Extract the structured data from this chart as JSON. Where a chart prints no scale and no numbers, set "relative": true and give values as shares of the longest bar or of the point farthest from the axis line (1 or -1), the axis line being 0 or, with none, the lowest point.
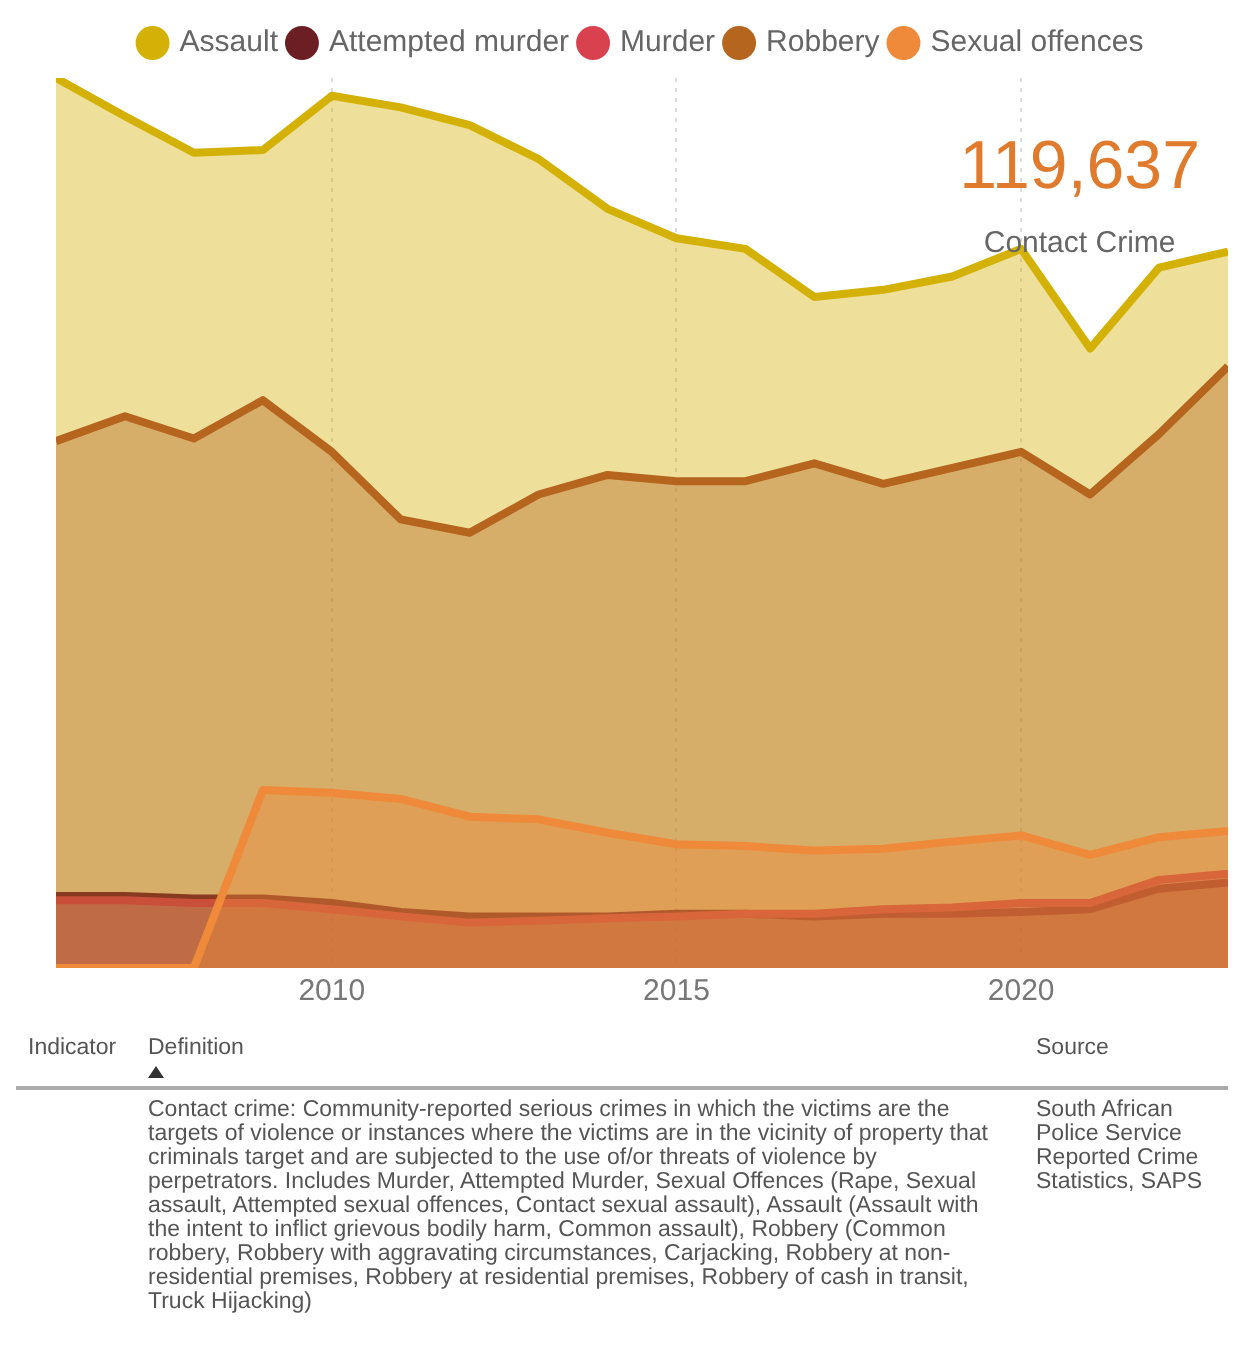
{
  "chart_data": {
    "type": "area",
    "relative": true,
    "x": [
      2006,
      2007,
      2008,
      2009,
      2010,
      2011,
      2012,
      2013,
      2014,
      2015,
      2016,
      2017,
      2018,
      2019,
      2020,
      2021,
      2022,
      2023
    ],
    "xlim": [
      2006,
      2023
    ],
    "xticks": [
      2010,
      2015,
      2020
    ],
    "grid": "x",
    "legend": "top",
    "marker": "none",
    "series": [
      {
        "name": "Assault",
        "color": "#d4b106",
        "values": [
          1.0,
          0.957,
          0.916,
          0.919,
          0.98,
          0.967,
          0.947,
          0.909,
          0.853,
          0.82,
          0.808,
          0.754,
          0.762,
          0.777,
          0.808,
          0.696,
          0.787,
          0.805
        ]
      },
      {
        "name": "Attempted murder",
        "color": "#6b1f24",
        "values": [
          0.081,
          0.081,
          0.078,
          0.078,
          0.073,
          0.063,
          0.058,
          0.058,
          0.058,
          0.061,
          0.061,
          0.058,
          0.061,
          0.061,
          0.063,
          0.066,
          0.089,
          0.096
        ]
      },
      {
        "name": "Murder",
        "color": "#d9414f",
        "values": [
          0.076,
          0.076,
          0.073,
          0.073,
          0.066,
          0.058,
          0.051,
          0.053,
          0.056,
          0.058,
          0.061,
          0.061,
          0.066,
          0.068,
          0.073,
          0.073,
          0.099,
          0.106
        ]
      },
      {
        "name": "Robbery",
        "color": "#b5651d",
        "values": [
          0.592,
          0.62,
          0.595,
          0.638,
          0.58,
          0.504,
          0.489,
          0.532,
          0.554,
          0.547,
          0.547,
          0.567,
          0.544,
          0.562,
          0.58,
          0.532,
          0.6,
          0.676
        ]
      },
      {
        "name": "Sexual offences",
        "color": "#ee8a3a",
        "values": [
          0,
          0,
          0,
          0.2,
          0.197,
          0.19,
          0.17,
          0.167,
          0.152,
          0.139,
          0.137,
          0.132,
          0.134,
          0.142,
          0.149,
          0.127,
          0.147,
          0.154
        ]
      }
    ],
    "annotations": [
      "119,637",
      "Contact Crime",
      "Indicator",
      "Definition",
      "Source",
      "Contact crime: Community-reported serious crimes in which the victims are the targets of violence or instances where the victims are in the vicinity of property that criminals target and are subjected to the use of/or threats of violence by perpetrators. Includes Murder, Attempted Murder, Sexual Offences (Rape, Sexual assault, Attempted sexual offences, Contact sexual assault), Assault (Assault with the intent to inflict grievous bodily harm, Common assault), Robbery (Common robbery, Robbery with aggravating circumstances, Carjacking, Robbery at non-residential premises, Robbery at residential premises, Robbery of cash in transit, Truck Hijacking)",
      "South African Police Service Reported Crime Statistics, SAPS"
    ]
  }
}
